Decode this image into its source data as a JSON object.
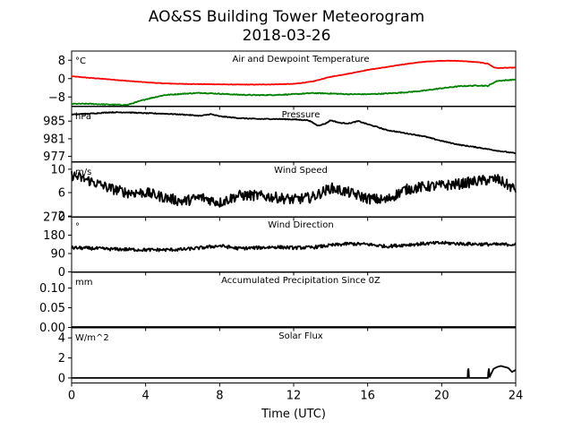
{
  "figure": {
    "title": "AO&SS Building Tower Meteorogram",
    "date": "2018-03-26"
  },
  "chart_data": {
    "type": "line",
    "title": "AO&SS Building Tower Meteorogram",
    "subtitle": "2018-03-26",
    "xlabel": "Time (UTC)",
    "xlim": [
      0,
      24
    ],
    "xticks": [
      "0",
      "4",
      "8",
      "12",
      "16",
      "20",
      "24"
    ],
    "panels": [
      {
        "key": "temp",
        "title": "Air and Dewpoint Temperature",
        "unit": "°C",
        "ylim": [
          -12,
          12
        ],
        "yticks": [
          {
            "v": 8,
            "label": "8"
          },
          {
            "v": 0,
            "label": "0"
          },
          {
            "v": -8,
            "label": "−8"
          }
        ],
        "series": [
          {
            "color": "#ff0000",
            "noise": 0.1,
            "x": [
              0,
              1,
              2,
              3,
              4,
              5,
              6,
              7,
              8,
              9,
              10,
              11,
              12,
              13,
              14,
              15,
              16,
              17,
              18,
              19,
              20,
              21,
              22,
              22.5,
              22.8,
              23,
              24
            ],
            "y": [
              1.0,
              0.3,
              -0.3,
              -1.0,
              -1.6,
              -2.1,
              -2.3,
              -2.4,
              -2.5,
              -2.6,
              -2.6,
              -2.5,
              -2.3,
              -1.3,
              0.8,
              2.2,
              3.8,
              5.0,
              6.3,
              7.3,
              7.8,
              7.7,
              7.1,
              6.5,
              5.0,
              4.6,
              4.8
            ]
          },
          {
            "color": "#008000",
            "noise": 0.2,
            "x": [
              0,
              1,
              2,
              3,
              4,
              5,
              6,
              7,
              8,
              9,
              10,
              11,
              12,
              13,
              14,
              15,
              16,
              17,
              18,
              19,
              20,
              21,
              22,
              22.5,
              22.8,
              23,
              24
            ],
            "y": [
              -11.0,
              -11.0,
              -11.3,
              -11.5,
              -9.0,
              -7.2,
              -6.6,
              -6.2,
              -6.6,
              -7.0,
              -7.2,
              -7.1,
              -6.8,
              -6.3,
              -6.5,
              -6.8,
              -6.8,
              -6.5,
              -6.0,
              -5.3,
              -4.2,
              -3.3,
              -3.0,
              -3.2,
              -1.8,
              -1.0,
              -0.4
            ]
          }
        ]
      },
      {
        "key": "pressure",
        "title": "Pressure",
        "unit": "hPa",
        "ylim": [
          975.8,
          988.3
        ],
        "yticks": [
          {
            "v": 985,
            "label": "985"
          },
          {
            "v": 981,
            "label": "981"
          },
          {
            "v": 977,
            "label": "977"
          }
        ],
        "series": [
          {
            "color": "#000000",
            "noise": 0.1,
            "x": [
              0,
              1,
              2,
              3,
              4,
              5,
              6,
              7,
              7.5,
              8,
              9,
              10,
              11,
              12,
              12.8,
              13.3,
              13.7,
              14,
              14.5,
              15,
              15.5,
              16,
              16.5,
              17,
              18,
              19,
              20,
              21,
              22,
              23,
              24
            ],
            "y": [
              986.5,
              986.7,
              987.0,
              987.0,
              986.8,
              986.7,
              986.5,
              986.2,
              986.6,
              986.1,
              985.7,
              985.5,
              985.5,
              985.4,
              985.2,
              984.0,
              984.4,
              985.2,
              984.6,
              984.5,
              985.0,
              984.3,
              983.7,
              983.0,
              982.3,
              981.6,
              980.5,
              979.6,
              979.0,
              978.3,
              977.7
            ]
          }
        ]
      },
      {
        "key": "wspd",
        "title": "Wind Speed",
        "unit": "m/s",
        "ylim": [
          1.8,
          11.2
        ],
        "yticks": [
          {
            "v": 10,
            "label": "10"
          },
          {
            "v": 6,
            "label": "6"
          },
          {
            "v": 2,
            "label": "2"
          }
        ],
        "series": [
          {
            "color": "#000000",
            "noise": 0.9,
            "x": [
              0,
              1,
              2,
              3,
              4,
              5,
              6,
              7,
              8,
              9,
              10,
              11,
              12,
              13,
              14,
              15,
              16,
              17,
              18,
              19,
              20,
              21,
              22,
              23,
              24
            ],
            "y": [
              9.0,
              8.0,
              6.8,
              6.0,
              6.0,
              5.2,
              4.5,
              5.2,
              4.3,
              5.5,
              5.5,
              5.2,
              4.8,
              5.2,
              6.8,
              6.0,
              5.0,
              4.7,
              6.5,
              7.0,
              7.2,
              7.5,
              8.0,
              8.3,
              6.5
            ]
          }
        ]
      },
      {
        "key": "wdir",
        "title": "Wind Direction",
        "unit": "°",
        "ylim": [
          0,
          270
        ],
        "yticks": [
          {
            "v": 270,
            "label": "270"
          },
          {
            "v": 180,
            "label": "180"
          },
          {
            "v": 90,
            "label": "90"
          },
          {
            "v": 0,
            "label": "0"
          }
        ],
        "series": [
          {
            "color": "#000000",
            "noise": 8,
            "x": [
              0,
              1,
              2,
              3,
              4,
              5,
              6,
              7,
              8,
              9,
              10,
              11,
              12,
              13,
              14,
              15,
              16,
              17,
              18,
              19,
              20,
              21,
              22,
              23,
              24
            ],
            "y": [
              118,
              116,
              112,
              110,
              108,
              108,
              110,
              118,
              128,
              115,
              118,
              122,
              118,
              120,
              130,
              138,
              135,
              125,
              132,
              138,
              142,
              138,
              136,
              134,
              135
            ]
          }
        ]
      },
      {
        "key": "precip",
        "title": "Accumulated Precipitation Since 0Z",
        "unit": "mm",
        "ylim": [
          0,
          0.14
        ],
        "yticks": [
          {
            "v": 0.1,
            "label": "0.10"
          },
          {
            "v": 0.05,
            "label": "0.05"
          },
          {
            "v": 0,
            "label": "0.00"
          }
        ],
        "series": [
          {
            "color": "#000000",
            "noise": 0,
            "x": [
              0,
              24
            ],
            "y": [
              0,
              0
            ]
          }
        ]
      },
      {
        "key": "solar",
        "title": "Solar Flux",
        "unit": "W/m^2",
        "ylim": [
          -0.5,
          5.0
        ],
        "yticks": [
          {
            "v": 4,
            "label": "4"
          },
          {
            "v": 2,
            "label": "2"
          },
          {
            "v": 0,
            "label": "0"
          }
        ],
        "series": [
          {
            "color": "#000000",
            "noise": 0,
            "x": [
              0,
              21.4,
              21.42,
              21.45,
              21.48,
              22.5,
              22.52,
              22.55,
              22.6,
              22.62,
              22.8,
              23.0,
              23.2,
              23.4,
              23.6,
              23.8,
              24
            ],
            "y": [
              0,
              0,
              0.8,
              0.9,
              0,
              0,
              0.6,
              0.9,
              0.1,
              0.2,
              0.9,
              1.1,
              1.2,
              1.1,
              1.0,
              0.6,
              0.8
            ]
          }
        ]
      }
    ]
  }
}
